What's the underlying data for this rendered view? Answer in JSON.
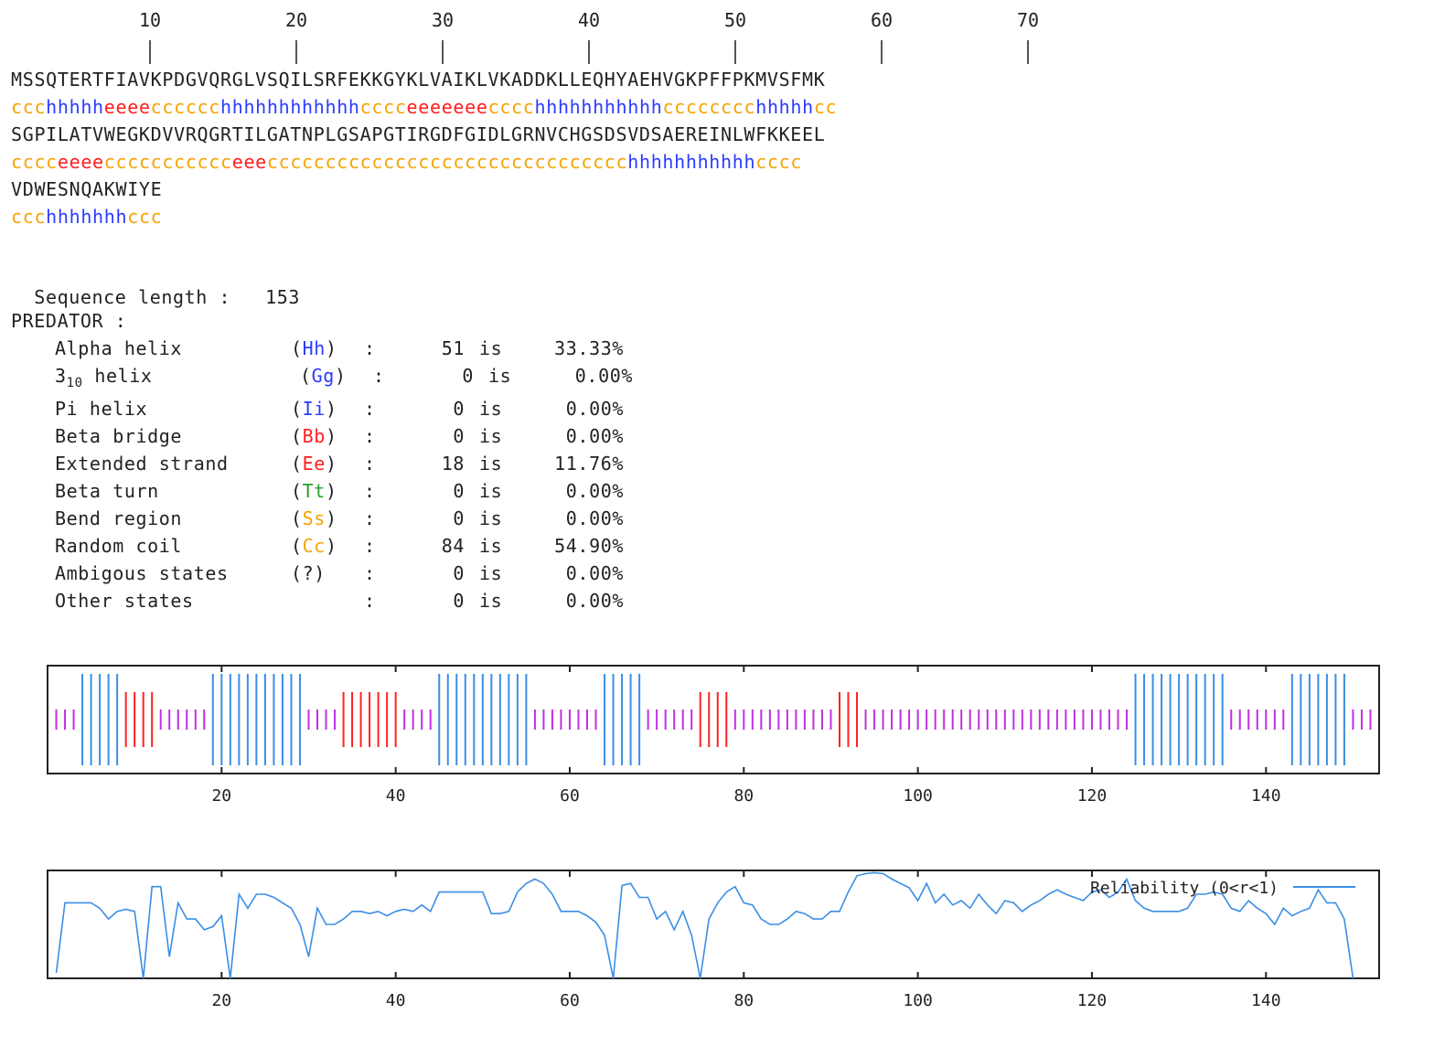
{
  "ruler": {
    "labels": [
      "10",
      "20",
      "30",
      "40",
      "50",
      "60",
      "70"
    ]
  },
  "sequence_blocks": [
    {
      "aa": "MSSQTERTFIAVKPDGVQRGLVSQILSRFEKKGYKLVAIKLVKADDKLLEQHYAEHVGKPFFPKMVSFMK",
      "ss": "ccchhhhheeeecccccchhhhhhhhhhhhcccceeeeeeecccchhhhhhhhhhhcccccccchhhhhcc"
    },
    {
      "aa": "SGPILATVWEGKDVVRQGRTILGATNPLGSAPGTIRGDFGIDLGRNVCHGSDSVDSAEREINLWFKKEEL",
      "ss": "cccceeeeccccccccccceeeccccccccccccccccccccccccccccccchhhhhhhhhhhcccc"
    },
    {
      "aa": "VDWESNQAKWIYE",
      "ss": "ccchhhhhhhccc"
    }
  ],
  "seq_length_label": "Sequence length :",
  "seq_length_value": "153",
  "predator_label": "PREDATOR :",
  "stats": [
    {
      "name": "Alpha helix",
      "code": "Hh",
      "color": "#2b3bff",
      "count": "51",
      "is": "is",
      "pct": "33.33%"
    },
    {
      "name": "3",
      "sub": "10",
      "name2": " helix",
      "code": "Gg",
      "color": "#2b3bff",
      "count": "0",
      "is": "is",
      "pct": "0.00%"
    },
    {
      "name": "Pi helix",
      "code": "Ii",
      "color": "#2b3bff",
      "count": "0",
      "is": "is",
      "pct": "0.00%"
    },
    {
      "name": "Beta bridge",
      "code": "Bb",
      "color": "#ff2020",
      "count": "0",
      "is": "is",
      "pct": "0.00%"
    },
    {
      "name": "Extended strand",
      "code": "Ee",
      "color": "#ff2020",
      "count": "18",
      "is": "is",
      "pct": "11.76%"
    },
    {
      "name": "Beta turn",
      "code": "Tt",
      "color": "#2a9d2a",
      "count": "0",
      "is": "is",
      "pct": "0.00%"
    },
    {
      "name": "Bend region",
      "code": "Ss",
      "color": "#f5a300",
      "count": "0",
      "is": "is",
      "pct": "0.00%"
    },
    {
      "name": "Random coil",
      "code": "Cc",
      "color": "#f5a300",
      "count": "84",
      "is": "is",
      "pct": "54.90%"
    },
    {
      "name": "Ambigous states",
      "code": "?",
      "color": "#222222",
      "count": "0",
      "is": "is",
      "pct": "0.00%"
    },
    {
      "name": "Other states",
      "code": "",
      "color": "#222222",
      "count": "0",
      "is": "is",
      "pct": "0.00%"
    }
  ],
  "chart_data": [
    {
      "type": "bar",
      "title": "",
      "xlim": [
        0,
        153
      ],
      "xticks": [
        "20",
        "40",
        "60",
        "80",
        "100",
        "120",
        "140"
      ],
      "colors": {
        "h": "#3a8ee6",
        "e": "#ff2020",
        "c": "#c030e0"
      },
      "states": "ccchhhhheeeecccccchhhhhhhhhhhcccceeeeeeecccchhhhhhhhhhhcccccccchhhhhcccccceeeecccccccccccceeeccccccccccccccccccccccccccccccchhhhhhhhhhhccccccchhhhhhhccc"
    },
    {
      "type": "line",
      "title": "",
      "legend": "Reliability (0<r<1)",
      "legend_position": "top-right",
      "color": "#3a8ee6",
      "xlim": [
        0,
        153
      ],
      "ylim": [
        0,
        1
      ],
      "xticks": [
        "20",
        "40",
        "60",
        "80",
        "100",
        "120",
        "140"
      ],
      "x": [
        1,
        2,
        3,
        4,
        5,
        6,
        7,
        8,
        9,
        10,
        11,
        12,
        13,
        14,
        15,
        16,
        17,
        18,
        19,
        20,
        21,
        22,
        23,
        24,
        25,
        26,
        27,
        28,
        29,
        30,
        31,
        32,
        33,
        34,
        35,
        36,
        37,
        38,
        39,
        40,
        41,
        42,
        43,
        44,
        45,
        46,
        47,
        48,
        49,
        50,
        51,
        52,
        53,
        54,
        55,
        56,
        57,
        58,
        59,
        60,
        61,
        62,
        63,
        64,
        65,
        66,
        67,
        68,
        69,
        70,
        71,
        72,
        73,
        74,
        75,
        76,
        77,
        78,
        79,
        80,
        81,
        82,
        83,
        84,
        85,
        86,
        87,
        88,
        89,
        90,
        91,
        92,
        93,
        94,
        95,
        96,
        97,
        98,
        99,
        100,
        101,
        102,
        103,
        104,
        105,
        106,
        107,
        108,
        109,
        110,
        111,
        112,
        113,
        114,
        115,
        116,
        117,
        118,
        119,
        120,
        121,
        122,
        123,
        124,
        125,
        126,
        127,
        128,
        129,
        130,
        131,
        132,
        133,
        134,
        135,
        136,
        137,
        138,
        139,
        140,
        141,
        142,
        143,
        144,
        145,
        146,
        147,
        148,
        149,
        150
      ],
      "y": [
        0.05,
        0.7,
        0.7,
        0.7,
        0.7,
        0.65,
        0.55,
        0.62,
        0.64,
        0.62,
        0.0,
        0.85,
        0.85,
        0.2,
        0.7,
        0.55,
        0.55,
        0.45,
        0.48,
        0.58,
        0.0,
        0.78,
        0.65,
        0.78,
        0.78,
        0.75,
        0.7,
        0.65,
        0.5,
        0.2,
        0.65,
        0.5,
        0.5,
        0.55,
        0.62,
        0.62,
        0.6,
        0.62,
        0.58,
        0.62,
        0.64,
        0.62,
        0.68,
        0.62,
        0.8,
        0.8,
        0.8,
        0.8,
        0.8,
        0.8,
        0.6,
        0.6,
        0.62,
        0.8,
        0.88,
        0.92,
        0.88,
        0.78,
        0.62,
        0.62,
        0.62,
        0.58,
        0.52,
        0.4,
        0.0,
        0.86,
        0.88,
        0.75,
        0.75,
        0.55,
        0.62,
        0.45,
        0.62,
        0.4,
        0.0,
        0.55,
        0.7,
        0.8,
        0.85,
        0.7,
        0.68,
        0.55,
        0.5,
        0.5,
        0.55,
        0.62,
        0.6,
        0.55,
        0.55,
        0.62,
        0.62,
        0.8,
        0.95,
        0.97,
        0.98,
        0.97,
        0.92,
        0.88,
        0.84,
        0.72,
        0.88,
        0.7,
        0.78,
        0.68,
        0.72,
        0.65,
        0.78,
        0.68,
        0.6,
        0.72,
        0.7,
        0.62,
        0.68,
        0.72,
        0.78,
        0.82,
        0.78,
        0.75,
        0.72,
        0.8,
        0.82,
        0.75,
        0.8,
        0.92,
        0.72,
        0.65,
        0.62,
        0.62,
        0.62,
        0.62,
        0.65,
        0.78,
        0.78,
        0.8,
        0.78,
        0.65,
        0.62,
        0.72,
        0.65,
        0.6,
        0.5,
        0.65,
        0.58,
        0.62,
        0.65,
        0.82,
        0.7,
        0.7,
        0.55,
        0.0
      ]
    }
  ]
}
